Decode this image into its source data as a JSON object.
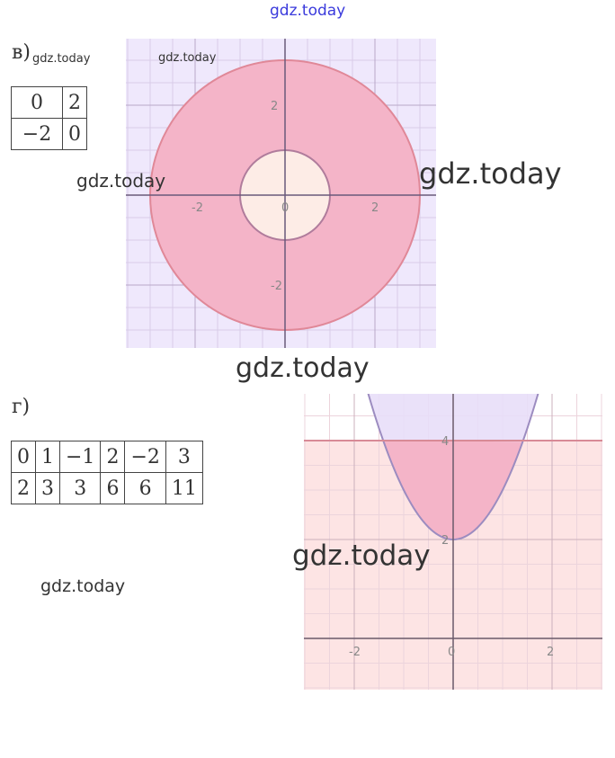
{
  "header": {
    "site": "gdz.today"
  },
  "part_v": {
    "label": "в)",
    "watermark_small": "gdz.today",
    "table": [
      [
        "0",
        "2"
      ],
      [
        "−2",
        "0"
      ]
    ],
    "graph_watermark": "gdz.today"
  },
  "part_g": {
    "label": "г)",
    "table": [
      [
        "0",
        "1",
        "−1",
        "2",
        "−2",
        "3"
      ],
      [
        "2",
        "3",
        "3",
        "6",
        "6",
        "11"
      ]
    ]
  },
  "watermarks": [
    "gdz.today",
    "gdz.today",
    "gdz.today",
    "gdz.today",
    "gdz.today"
  ],
  "colors": {
    "region_pink": "#f4b4c8",
    "lavender": "#ece4fc",
    "light_pink": "#fde4e4",
    "inner_fill": "#fdece6",
    "curve": "#b07c9c"
  },
  "chart_data": [
    {
      "type": "region",
      "description_shapes": {
        "outer_circle_radius": 3,
        "inner_circle_radius": 1,
        "center": [
          0,
          0
        ]
      },
      "x_ticks": [
        "-2",
        "0",
        "2"
      ],
      "y_ticks": [
        "2",
        "-2"
      ],
      "xlim": [
        -3.5,
        3.4
      ],
      "ylim": [
        -3.0,
        3.5
      ],
      "grid": true
    },
    {
      "type": "region",
      "description_shapes": {
        "parabola": "y = x^2 + 2",
        "line": "y = 4"
      },
      "x_ticks": [
        "-2",
        "0",
        "2"
      ],
      "y_ticks": [
        "4",
        "2"
      ],
      "xlim": [
        -3,
        3
      ],
      "ylim": [
        -1,
        5
      ],
      "grid": true
    }
  ]
}
